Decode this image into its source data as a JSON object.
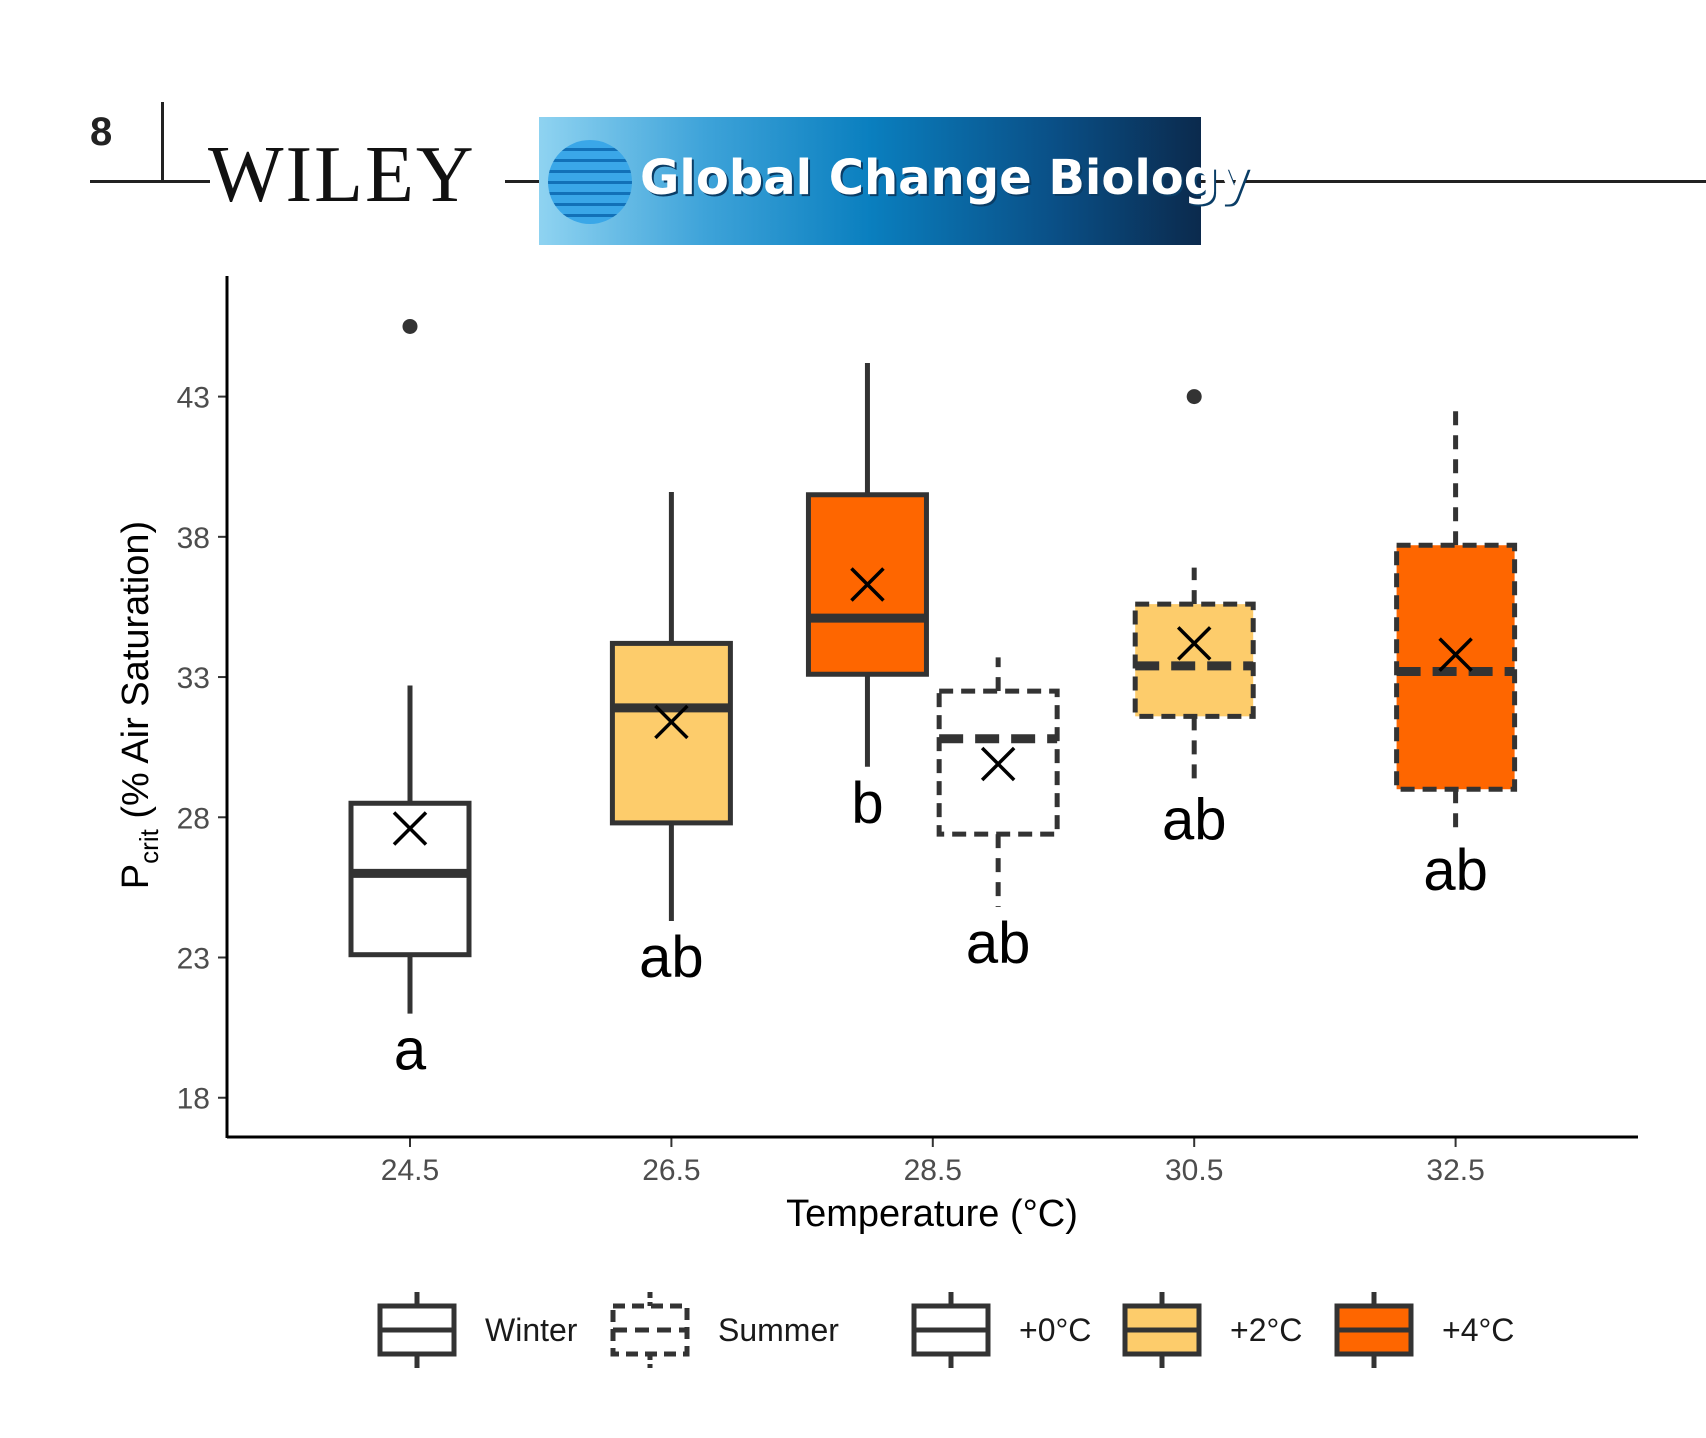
{
  "header": {
    "page_number": "8",
    "publisher": "WILEY",
    "journal_title": "Global Change Biology"
  },
  "chart_data": {
    "type": "box",
    "xlabel": "Temperature (°C)",
    "ylabel_main": "P",
    "ylabel_sub": "crit",
    "ylabel_rest": " (% Air Saturation)",
    "ylim": [
      16.6,
      47.3
    ],
    "yticks": [
      18,
      23,
      28,
      33,
      38,
      43
    ],
    "xticks": [
      "24.5",
      "26.5",
      "28.5",
      "30.5",
      "32.5"
    ],
    "boxes": [
      {
        "x": 24.5,
        "season": "Winter",
        "treatment": "+0°C",
        "fill": "#ffffff",
        "q1": 23.1,
        "median": 26.0,
        "q3": 28.5,
        "whisker_low": 21.0,
        "whisker_high": 32.7,
        "mean": 27.6,
        "outliers": [
          45.5
        ],
        "letter": "a"
      },
      {
        "x": 26.5,
        "season": "Winter",
        "treatment": "+2°C",
        "fill": "#fdcc6b",
        "q1": 27.8,
        "median": 31.9,
        "q3": 34.2,
        "whisker_low": 24.3,
        "whisker_high": 39.6,
        "mean": 31.4,
        "outliers": [],
        "letter": "ab"
      },
      {
        "x": 28.0,
        "season": "Winter",
        "treatment": "+4°C",
        "fill": "#fe6600",
        "q1": 33.1,
        "median": 35.1,
        "q3": 39.5,
        "whisker_low": 29.8,
        "whisker_high": 44.2,
        "mean": 36.3,
        "outliers": [],
        "letter": "b"
      },
      {
        "x": 29.0,
        "season": "Summer",
        "treatment": "+0°C",
        "fill": "#ffffff",
        "q1": 27.4,
        "median": 30.8,
        "q3": 32.5,
        "whisker_low": 24.8,
        "whisker_high": 33.7,
        "mean": 29.9,
        "outliers": [],
        "letter": "ab"
      },
      {
        "x": 30.5,
        "season": "Summer",
        "treatment": "+2°C",
        "fill": "#fdcc6b",
        "q1": 31.6,
        "median": 33.4,
        "q3": 35.6,
        "whisker_low": 29.2,
        "whisker_high": 36.9,
        "mean": 34.2,
        "outliers": [
          43.0
        ],
        "letter": "ab"
      },
      {
        "x": 32.5,
        "season": "Summer",
        "treatment": "+4°C",
        "fill": "#fe6600",
        "q1": 29.0,
        "median": 33.2,
        "q3": 37.7,
        "whisker_low": 27.4,
        "whisker_high": 42.6,
        "mean": 33.8,
        "outliers": [],
        "letter": "ab"
      }
    ],
    "legend": [
      {
        "label": "Winter",
        "style": "solid",
        "fill": "#ffffff"
      },
      {
        "label": "Summer",
        "style": "dashed",
        "fill": "#ffffff"
      },
      {
        "label": "+0°C",
        "style": "solid",
        "fill": "#ffffff"
      },
      {
        "label": "+2°C",
        "style": "solid",
        "fill": "#fdcc6b"
      },
      {
        "label": "+4°C",
        "style": "solid",
        "fill": "#fe6600"
      }
    ],
    "legend_position": "bottom"
  }
}
